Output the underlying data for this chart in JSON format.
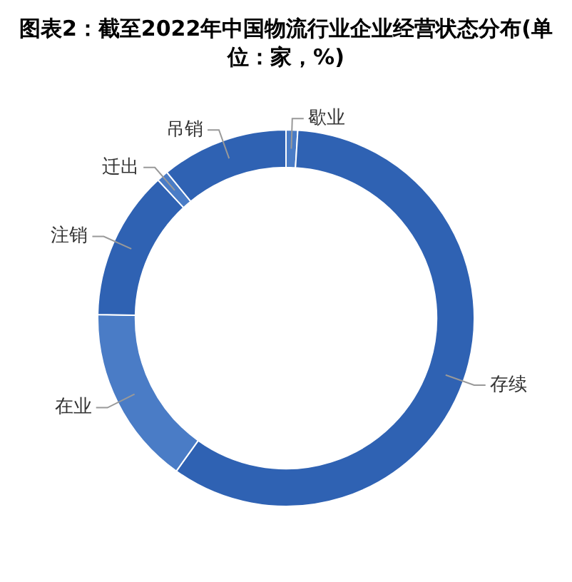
{
  "chart_data": {
    "type": "donut",
    "title": "图表2：截至2022年中国物流行业企业经营状态分布(单位：家，%)",
    "categories": [
      "歇业",
      "存续",
      "在业",
      "注销",
      "迁出",
      "吊销"
    ],
    "values": [
      1,
      58.9,
      15.4,
      12.8,
      1,
      10.9
    ],
    "colors": [
      "#4a7cc6",
      "#2f62b3",
      "#4a7cc6",
      "#2f62b3",
      "#4a7cc6",
      "#2f62b3"
    ],
    "legend": false
  }
}
